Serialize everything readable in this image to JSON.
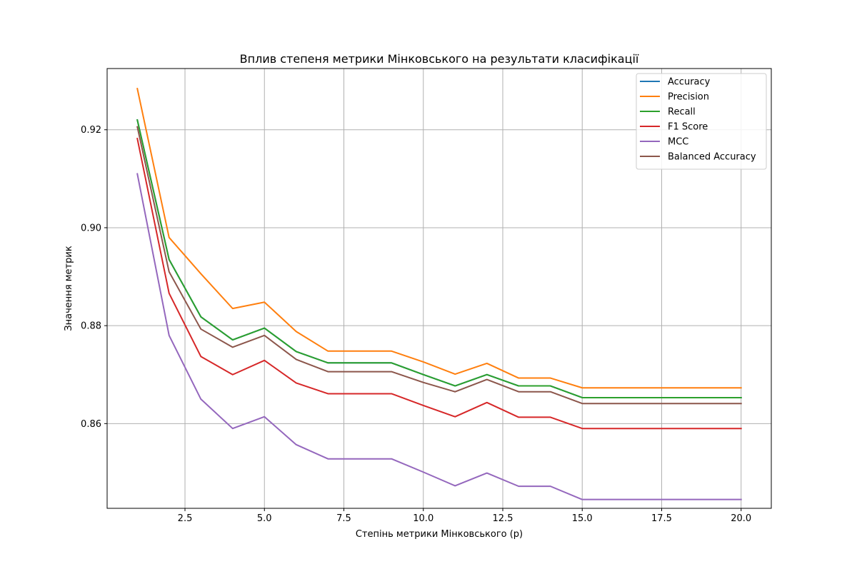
{
  "chart_data": {
    "type": "line",
    "title": "Вплив степеня метрики Мінковського на результати класифікації",
    "xlabel": "Степінь метрики Мінковського (p)",
    "ylabel": "Значення метрик",
    "xlim": [
      0.05,
      20.95
    ],
    "ylim": [
      0.8427,
      0.9325
    ],
    "xticks": [
      2.5,
      5.0,
      7.5,
      10.0,
      12.5,
      15.0,
      17.5,
      20.0
    ],
    "xtick_labels": [
      "2.5",
      "5.0",
      "7.5",
      "10.0",
      "12.5",
      "15.0",
      "17.5",
      "20.0"
    ],
    "yticks": [
      0.86,
      0.88,
      0.9,
      0.92
    ],
    "ytick_labels": [
      "0.86",
      "0.88",
      "0.90",
      "0.92"
    ],
    "grid": true,
    "legend_position": "top-right",
    "x": [
      1,
      2,
      3,
      4,
      5,
      6,
      7,
      8,
      9,
      10,
      11,
      12,
      13,
      14,
      15,
      16,
      17,
      18,
      19,
      20
    ],
    "series": [
      {
        "name": "Accuracy",
        "color": "#1f77b4",
        "values": [
          0.922,
          0.8935,
          0.8818,
          0.8771,
          0.8795,
          0.8747,
          0.8724,
          0.8724,
          0.8724,
          0.87,
          0.8677,
          0.87,
          0.8677,
          0.8677,
          0.8653,
          0.8653,
          0.8653,
          0.8653,
          0.8653,
          0.8653
        ]
      },
      {
        "name": "Precision",
        "color": "#ff7f0e",
        "values": [
          0.9284,
          0.898,
          0.8906,
          0.8835,
          0.8848,
          0.8788,
          0.8748,
          0.8748,
          0.8748,
          0.8726,
          0.8701,
          0.8723,
          0.8693,
          0.8693,
          0.8673,
          0.8673,
          0.8673,
          0.8673,
          0.8673,
          0.8673
        ]
      },
      {
        "name": "Recall",
        "color": "#2ca02c",
        "values": [
          0.922,
          0.8935,
          0.8818,
          0.8771,
          0.8795,
          0.8747,
          0.8724,
          0.8724,
          0.8724,
          0.87,
          0.8677,
          0.87,
          0.8677,
          0.8677,
          0.8653,
          0.8653,
          0.8653,
          0.8653,
          0.8653,
          0.8653
        ]
      },
      {
        "name": "F1 Score",
        "color": "#d62728",
        "values": [
          0.9182,
          0.8866,
          0.8737,
          0.87,
          0.8729,
          0.8683,
          0.8661,
          0.8661,
          0.8661,
          0.8637,
          0.8614,
          0.8643,
          0.8613,
          0.8613,
          0.859,
          0.859,
          0.859,
          0.859,
          0.859,
          0.859
        ]
      },
      {
        "name": "MCC",
        "color": "#9467bd",
        "values": [
          0.911,
          0.878,
          0.865,
          0.859,
          0.8614,
          0.8557,
          0.8528,
          0.8528,
          0.8528,
          0.8501,
          0.8473,
          0.8499,
          0.8472,
          0.8472,
          0.8445,
          0.8445,
          0.8445,
          0.8445,
          0.8445,
          0.8445
        ]
      },
      {
        "name": "Balanced Accuracy",
        "color": "#8c564b",
        "values": [
          0.9206,
          0.891,
          0.8793,
          0.8756,
          0.878,
          0.8731,
          0.8706,
          0.8706,
          0.8706,
          0.8684,
          0.8665,
          0.869,
          0.8665,
          0.8665,
          0.8641,
          0.8641,
          0.8641,
          0.8641,
          0.8641,
          0.8641
        ]
      }
    ]
  }
}
